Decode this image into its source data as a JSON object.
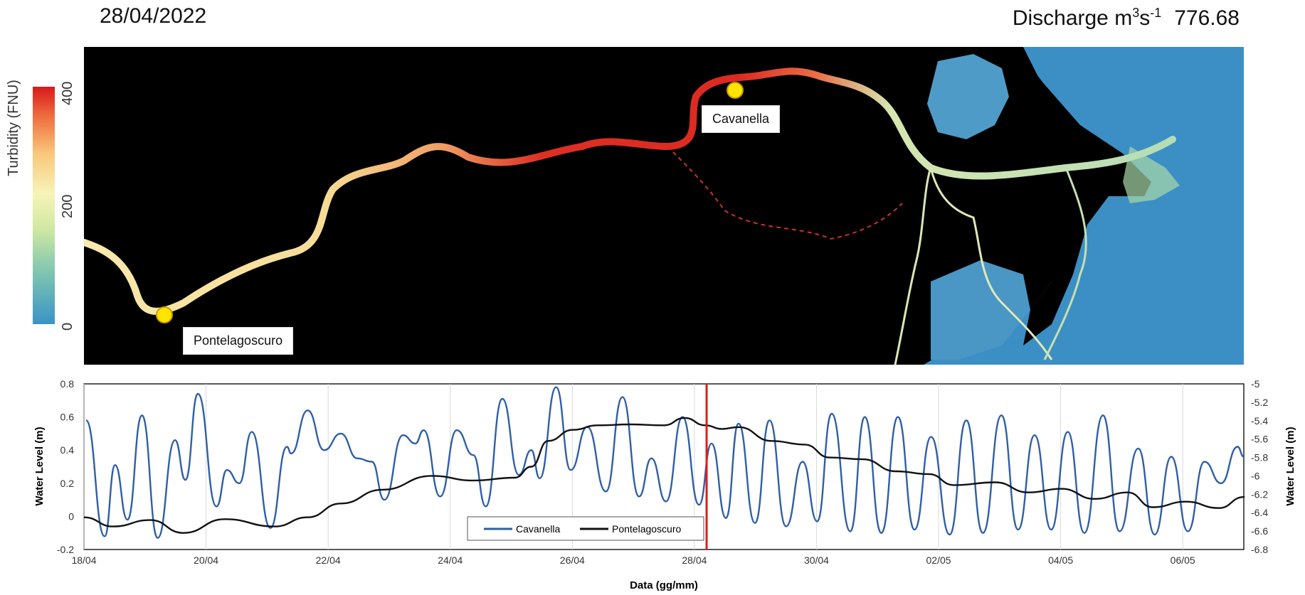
{
  "header": {
    "date": "28/04/2022",
    "discharge_label": "Discharge m",
    "discharge_exp_num": "3",
    "discharge_unit_mid": "s",
    "discharge_exp_neg": "-1",
    "discharge_value": "776.68"
  },
  "colorbar": {
    "title": "Turbidity (FNU)",
    "ticks": [
      "400",
      "200",
      "0"
    ],
    "colors": [
      "#3a93c6",
      "#7fc6b0",
      "#cfe8a2",
      "#f7f4b8",
      "#f9c77b",
      "#ee6a3e",
      "#d7191c"
    ]
  },
  "map": {
    "stations": [
      {
        "label": "Pontelagoscuro"
      },
      {
        "label": "Cavanella"
      }
    ],
    "marker_color": "#ffe400"
  },
  "chart_data": {
    "type": "line",
    "title": "",
    "xlabel": "Data (gg/mm)",
    "ylabel_left": "Water Level (m)",
    "ylabel_right": "Water Level (m)",
    "x_ticks": [
      "18/04",
      "20/04",
      "22/04",
      "24/04",
      "26/04",
      "28/04",
      "30/04",
      "02/05",
      "04/05",
      "06/05"
    ],
    "x_range_days": [
      0,
      19
    ],
    "ylim_left": [
      -0.2,
      0.8
    ],
    "ylim_right": [
      -6.8,
      -5
    ],
    "y_ticks_left": [
      "0.8",
      "0.6",
      "0.4",
      "0.2",
      "0",
      "-0.2"
    ],
    "y_ticks_right": [
      "-5",
      "-5.2",
      "-5.4",
      "-5.6",
      "-5.8",
      "-6",
      "-6.2",
      "-6.4",
      "-6.6",
      "-6.8"
    ],
    "grid": "vertical",
    "current_time_marker": "28/04",
    "marker_color": "#e01b1b",
    "legend_position": "bottom-center",
    "series": [
      {
        "name": "Cavanella",
        "axis": "left",
        "color": "#2f5fa6",
        "peaks": [
          [
            0.05,
            0.58
          ],
          [
            0.5,
            -0.12
          ],
          [
            0.75,
            0.31
          ],
          [
            1.05,
            -0.02
          ],
          [
            1.4,
            0.61
          ],
          [
            1.78,
            -0.13
          ],
          [
            2.2,
            0.46
          ],
          [
            2.45,
            0.22
          ],
          [
            2.75,
            0.74
          ],
          [
            3.2,
            0.06
          ],
          [
            3.45,
            0.28
          ],
          [
            3.75,
            0.2
          ],
          [
            4.05,
            0.51
          ],
          [
            4.5,
            -0.07
          ],
          [
            4.9,
            0.42
          ],
          [
            5.0,
            0.38
          ],
          [
            5.4,
            0.64
          ],
          [
            5.8,
            0.4
          ],
          [
            6.2,
            0.5
          ],
          [
            6.6,
            0.35
          ],
          [
            6.95,
            0.33
          ],
          [
            7.25,
            0.1
          ],
          [
            7.7,
            0.49
          ],
          [
            8.0,
            0.44
          ],
          [
            8.2,
            0.52
          ],
          [
            8.6,
            0.12
          ],
          [
            9.0,
            0.52
          ],
          [
            9.4,
            0.37
          ],
          [
            9.7,
            0.06
          ],
          [
            10.1,
            0.71
          ],
          [
            10.5,
            0.25
          ],
          [
            10.8,
            0.4
          ],
          [
            11.0,
            0.23
          ],
          [
            11.4,
            0.78
          ],
          [
            11.75,
            0.28
          ],
          [
            12.15,
            0.54
          ],
          [
            12.6,
            0.15
          ],
          [
            13.0,
            0.72
          ],
          [
            13.4,
            0.12
          ],
          [
            13.7,
            0.35
          ],
          [
            14.05,
            0.09
          ],
          [
            14.45,
            0.6
          ],
          [
            14.85,
            0.07
          ],
          [
            15.15,
            0.44
          ],
          [
            15.5,
            -0.01
          ],
          [
            15.8,
            0.56
          ],
          [
            16.2,
            -0.04
          ],
          [
            16.55,
            0.58
          ],
          [
            16.95,
            -0.06
          ],
          [
            17.35,
            0.33
          ],
          [
            17.7,
            -0.03
          ],
          [
            18.05,
            0.62
          ],
          [
            18.5,
            -0.09
          ],
          [
            18.85,
            0.6
          ],
          [
            19.25,
            -0.1
          ],
          [
            19.65,
            0.6
          ],
          [
            20.05,
            -0.08
          ],
          [
            20.45,
            0.48
          ],
          [
            20.9,
            -0.11
          ],
          [
            21.3,
            0.58
          ],
          [
            21.7,
            -0.1
          ],
          [
            22.15,
            0.61
          ],
          [
            22.55,
            -0.08
          ],
          [
            22.95,
            0.49
          ],
          [
            23.35,
            -0.08
          ],
          [
            23.75,
            0.51
          ],
          [
            24.15,
            -0.1
          ],
          [
            24.6,
            0.61
          ],
          [
            25.0,
            -0.09
          ],
          [
            25.45,
            0.41
          ],
          [
            25.85,
            -0.11
          ],
          [
            26.25,
            0.36
          ],
          [
            26.65,
            -0.09
          ],
          [
            27.05,
            0.33
          ],
          [
            27.45,
            0.2
          ],
          [
            27.85,
            0.42
          ],
          [
            28.0,
            0.36
          ]
        ]
      },
      {
        "name": "Pontelagoscuro",
        "axis": "right",
        "color": "#111111",
        "points": [
          [
            0,
            -6.45
          ],
          [
            0.7,
            -6.55
          ],
          [
            1.6,
            -6.48
          ],
          [
            2.4,
            -6.62
          ],
          [
            3.4,
            -6.47
          ],
          [
            4.6,
            -6.55
          ],
          [
            5.4,
            -6.45
          ],
          [
            6.2,
            -6.3
          ],
          [
            7.2,
            -6.15
          ],
          [
            8.4,
            -6.0
          ],
          [
            9.4,
            -6.05
          ],
          [
            10.4,
            -6.02
          ],
          [
            10.8,
            -5.9
          ],
          [
            11.2,
            -5.62
          ],
          [
            11.8,
            -5.5
          ],
          [
            12.4,
            -5.45
          ],
          [
            13.2,
            -5.44
          ],
          [
            14.0,
            -5.45
          ],
          [
            14.5,
            -5.37
          ],
          [
            15.0,
            -5.45
          ],
          [
            15.4,
            -5.49
          ],
          [
            15.8,
            -5.47
          ],
          [
            16.6,
            -5.62
          ],
          [
            17.4,
            -5.66
          ],
          [
            18.0,
            -5.8
          ],
          [
            18.8,
            -5.82
          ],
          [
            19.6,
            -5.95
          ],
          [
            20.4,
            -5.98
          ],
          [
            21.0,
            -6.1
          ],
          [
            22.0,
            -6.07
          ],
          [
            22.8,
            -6.18
          ],
          [
            23.6,
            -6.14
          ],
          [
            24.4,
            -6.25
          ],
          [
            25.2,
            -6.18
          ],
          [
            25.8,
            -6.34
          ],
          [
            26.6,
            -6.28
          ],
          [
            27.4,
            -6.35
          ],
          [
            28.0,
            -6.23
          ],
          [
            28.0,
            -6.22
          ]
        ]
      }
    ]
  }
}
